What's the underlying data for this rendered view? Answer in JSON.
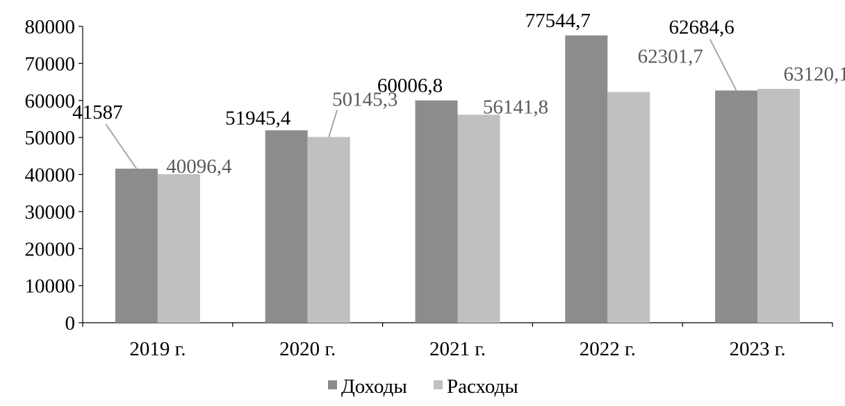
{
  "chart_data": {
    "type": "bar",
    "categories": [
      "2019 г.",
      "2020 г.",
      "2021 г.",
      "2022 г.",
      "2023 г."
    ],
    "series": [
      {
        "name": "Доходы",
        "color": "#8c8c8c",
        "label_color": "#000000",
        "values": [
          41587,
          51945.4,
          60006.8,
          77544.7,
          62684.6
        ],
        "value_labels": [
          "41587",
          "51945,4",
          "60006,8",
          "77544,7",
          "62684,6"
        ]
      },
      {
        "name": "Расходы",
        "color": "#c0c0c0",
        "label_color": "#595959",
        "values": [
          40096.4,
          50145.3,
          56141.8,
          62301.7,
          63120.1
        ],
        "value_labels": [
          "40096,4",
          "50145,3",
          "56141,8",
          "62301,7",
          "63120,1"
        ]
      }
    ],
    "y_ticks": [
      "0",
      "10000",
      "20000",
      "30000",
      "40000",
      "50000",
      "60000",
      "70000",
      "80000"
    ],
    "ylim": [
      0,
      80000
    ],
    "grid": false,
    "legend_position": "bottom",
    "title": "",
    "xlabel": "",
    "ylabel": ""
  }
}
